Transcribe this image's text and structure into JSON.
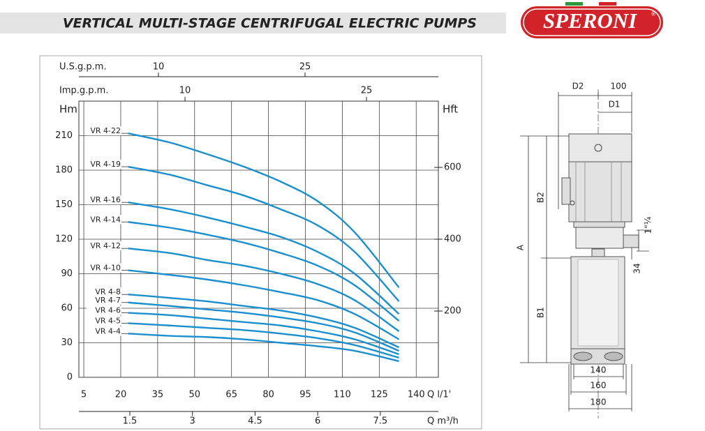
{
  "header": {
    "title": "VERTICAL MULTI-STAGE CENTRIFUGAL ELECTRIC PUMPS",
    "logo": "SPERONI",
    "logo_mark": "®"
  },
  "chart_data": {
    "type": "line",
    "y_label": "Hm",
    "y2_label": "Hft",
    "x_label": "Q l/1'",
    "x2_label": "Q m³/h",
    "x3_label": "Imp.g.p.m.",
    "x4_label": "U.S.g.p.m.",
    "xlim": [
      3,
      149
    ],
    "xticks": [
      5,
      20,
      35,
      50,
      65,
      80,
      95,
      110,
      125,
      140
    ],
    "ylim": [
      0,
      240
    ],
    "yticks": [
      0,
      30,
      60,
      90,
      120,
      150,
      180,
      210
    ],
    "y2lim": [
      15.5,
      784.5
    ],
    "y2ticks": [
      200,
      400,
      600
    ],
    "x2lim": [
      0.28,
      8.89
    ],
    "x2ticks": [
      1.5,
      3,
      4.5,
      6,
      7.5
    ],
    "x3lim": [
      1.23,
      30.94
    ],
    "x3ticks": [
      10,
      25
    ],
    "x4lim": [
      1.86,
      38.64
    ],
    "x4ticks": [
      10,
      25
    ],
    "grid": true,
    "x": [
      23,
      40,
      55,
      70,
      85,
      100,
      115,
      133
    ],
    "series": [
      {
        "name": "VR 4-22",
        "color": "#1a8fd0",
        "values": [
          212,
          204,
          194,
          183,
          170,
          153,
          126,
          78
        ]
      },
      {
        "name": "VR 4-19",
        "color": "#1a8fd0",
        "values": [
          183,
          176,
          167,
          158,
          146,
          132,
          109,
          66
        ]
      },
      {
        "name": "VR 4-16",
        "color": "#1a8fd0",
        "values": [
          152,
          146,
          139,
          131,
          122,
          109,
          90,
          55
        ]
      },
      {
        "name": "VR 4-14",
        "color": "#1a8fd0",
        "values": [
          135,
          130,
          124,
          117,
          108,
          97,
          80,
          49
        ]
      },
      {
        "name": "VR 4-12",
        "color": "#1a8fd0",
        "values": [
          112,
          108,
          102,
          97,
          90,
          81,
          67,
          40
        ]
      },
      {
        "name": "VR 4-10",
        "color": "#1a8fd0",
        "values": [
          93,
          89,
          85,
          80,
          74,
          67,
          55,
          33
        ]
      },
      {
        "name": "VR 4-8",
        "color": "#1a8fd0",
        "values": [
          72,
          69,
          66,
          62,
          58,
          52,
          43,
          26
        ]
      },
      {
        "name": "VR 4-7",
        "color": "#1a8fd0",
        "values": [
          65,
          62,
          59,
          56,
          52,
          47,
          39,
          23
        ]
      },
      {
        "name": "VR 4-6",
        "color": "#1a8fd0",
        "values": [
          56,
          54,
          51,
          48,
          45,
          40,
          33,
          20
        ]
      },
      {
        "name": "VR 4-5",
        "color": "#1a8fd0",
        "values": [
          47,
          45,
          43,
          41,
          38,
          34,
          28,
          17
        ]
      },
      {
        "name": "VR 4-4",
        "color": "#1a8fd0",
        "values": [
          38,
          36,
          35,
          33,
          30,
          27,
          23,
          14
        ]
      }
    ]
  },
  "diagram": {
    "labels": [
      "D2",
      "100",
      "D1",
      "A",
      "B2",
      "B1",
      "1\"¼",
      "34",
      "140",
      "160",
      "180"
    ]
  }
}
